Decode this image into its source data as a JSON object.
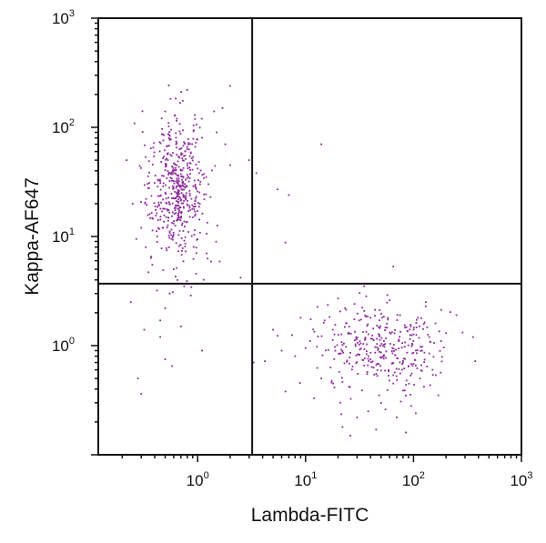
{
  "chart_data": {
    "type": "scatter",
    "xlabel": "Lambda-FITC",
    "ylabel": "Kappa-AF647",
    "x_scale": "log",
    "y_scale": "log",
    "xlim": [
      0.12,
      1000
    ],
    "ylim": [
      0.1,
      1000
    ],
    "x_ticks": [
      {
        "value": 1,
        "base": "10",
        "exp": "0"
      },
      {
        "value": 10,
        "base": "10",
        "exp": "1"
      },
      {
        "value": 100,
        "base": "10",
        "exp": "2"
      },
      {
        "value": 1000,
        "base": "10",
        "exp": "3"
      }
    ],
    "y_ticks": [
      {
        "value": 1,
        "base": "10",
        "exp": "0"
      },
      {
        "value": 10,
        "base": "10",
        "exp": "1"
      },
      {
        "value": 100,
        "base": "10",
        "exp": "2"
      },
      {
        "value": 1000,
        "base": "10",
        "exp": "3"
      }
    ],
    "quadrant_gates": {
      "x": 3.2,
      "y": 3.7
    },
    "grid": false,
    "point_color": "#8b2a9b",
    "axis_color": "#111111",
    "series": [
      {
        "points": [
          [
            0.32,
            1.4
          ],
          [
            0.28,
            0.5
          ],
          [
            0.45,
            1.7
          ],
          [
            0.55,
            3.0
          ],
          [
            0.65,
            4.0
          ],
          [
            0.42,
            3.2
          ],
          [
            0.5,
            2.2
          ],
          [
            0.6,
            5.0
          ],
          [
            0.38,
            5.5
          ],
          [
            0.75,
            3.5
          ],
          [
            0.3,
            0.36
          ],
          [
            0.5,
            0.75
          ],
          [
            0.7,
            1.5
          ],
          [
            1.1,
            0.9
          ],
          [
            0.24,
            2.5
          ],
          [
            0.58,
            0.65
          ],
          [
            0.45,
            1.2
          ],
          [
            2.0,
            240
          ],
          [
            1.7,
            150
          ],
          [
            0.8,
            220
          ],
          [
            0.5,
            140
          ],
          [
            1.5,
            90
          ],
          [
            1.8,
            70
          ],
          [
            2.0,
            45
          ],
          [
            3.0,
            50
          ],
          [
            3.5,
            38
          ],
          [
            5.5,
            27
          ],
          [
            7.0,
            24
          ],
          [
            6.5,
            8.8
          ],
          [
            14,
            70
          ],
          [
            65,
            5.3
          ],
          [
            1.6,
            5.9
          ],
          [
            0.22,
            50
          ],
          [
            0.25,
            20
          ],
          [
            0.27,
            9.5
          ],
          [
            0.3,
            12
          ],
          [
            0.35,
            4.7
          ],
          [
            2.5,
            4.2
          ]
        ]
      },
      {
        "points": [
          [
            5,
            1.4
          ],
          [
            6,
            0.9
          ],
          [
            6.5,
            0.38
          ],
          [
            7.5,
            1.25
          ],
          [
            8,
            0.8
          ],
          [
            10,
            0.95
          ],
          [
            11,
            1.1
          ],
          [
            14,
            0.5
          ],
          [
            15,
            1.7
          ],
          [
            18,
            0.45
          ],
          [
            20,
            2.7
          ],
          [
            21,
            0.3
          ],
          [
            22,
            0.18
          ],
          [
            24,
            1.6
          ],
          [
            30,
            0.22
          ],
          [
            35,
            3.5
          ],
          [
            38,
            0.25
          ],
          [
            40,
            0.75
          ],
          [
            48,
            0.35
          ],
          [
            55,
            0.26
          ],
          [
            60,
            2.6
          ],
          [
            65,
            0.45
          ],
          [
            70,
            0.22
          ],
          [
            75,
            1.9
          ],
          [
            80,
            0.7
          ],
          [
            90,
            0.65
          ],
          [
            95,
            0.28
          ],
          [
            100,
            1.4
          ],
          [
            110,
            1.8
          ],
          [
            115,
            0.5
          ],
          [
            120,
            0.9
          ],
          [
            125,
            0.42
          ],
          [
            130,
            2.5
          ],
          [
            140,
            1.2
          ],
          [
            150,
            0.6
          ],
          [
            160,
            1.6
          ],
          [
            170,
            0.35
          ],
          [
            180,
            1.1
          ],
          [
            200,
            1.3
          ],
          [
            250,
            1.9
          ],
          [
            4.2,
            0.72
          ],
          [
            3.3,
            0.7
          ],
          [
            9,
            1.8
          ],
          [
            12,
            0.33
          ],
          [
            26,
            0.15
          ],
          [
            45,
            0.17
          ],
          [
            85,
            0.16
          ],
          [
            105,
            0.24
          ]
        ]
      }
    ],
    "clusters": [
      {
        "center_x": 0.65,
        "center_y": 28,
        "spread_logx": 0.13,
        "spread_logy": 0.33,
        "count": 520,
        "seed": 17
      },
      {
        "center_x": 48,
        "center_y": 0.95,
        "spread_logx": 0.3,
        "spread_logy": 0.2,
        "count": 330,
        "seed": 91
      }
    ]
  }
}
